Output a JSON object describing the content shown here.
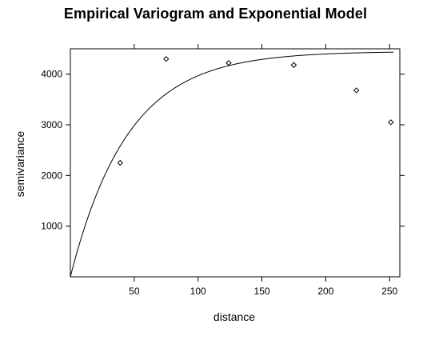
{
  "chart_data": {
    "type": "scatter",
    "title": "Empirical Variogram and Exponential Model",
    "xlabel": "distance",
    "ylabel": "semivariance",
    "xlim": [
      0,
      258
    ],
    "ylim": [
      0,
      4500
    ],
    "x_ticks": [
      50,
      100,
      150,
      200,
      250
    ],
    "y_ticks": [
      1000,
      2000,
      3000,
      4000
    ],
    "x_tick_labels": [
      "50",
      "100",
      "150",
      "200",
      "250"
    ],
    "y_tick_labels": [
      "1000",
      "2000",
      "3000",
      "4000"
    ],
    "grid": false,
    "legend": "none",
    "series": [
      {
        "kind": "points",
        "marker": "open-diamond",
        "x": [
          39,
          75,
          124,
          175,
          224,
          251
        ],
        "y": [
          2250,
          4300,
          4220,
          4180,
          3680,
          3050
        ]
      },
      {
        "kind": "model-line",
        "model": "exponential",
        "nugget": 0,
        "sill": 4450,
        "range": 45,
        "x_from": 0,
        "x_to": 253
      }
    ]
  }
}
